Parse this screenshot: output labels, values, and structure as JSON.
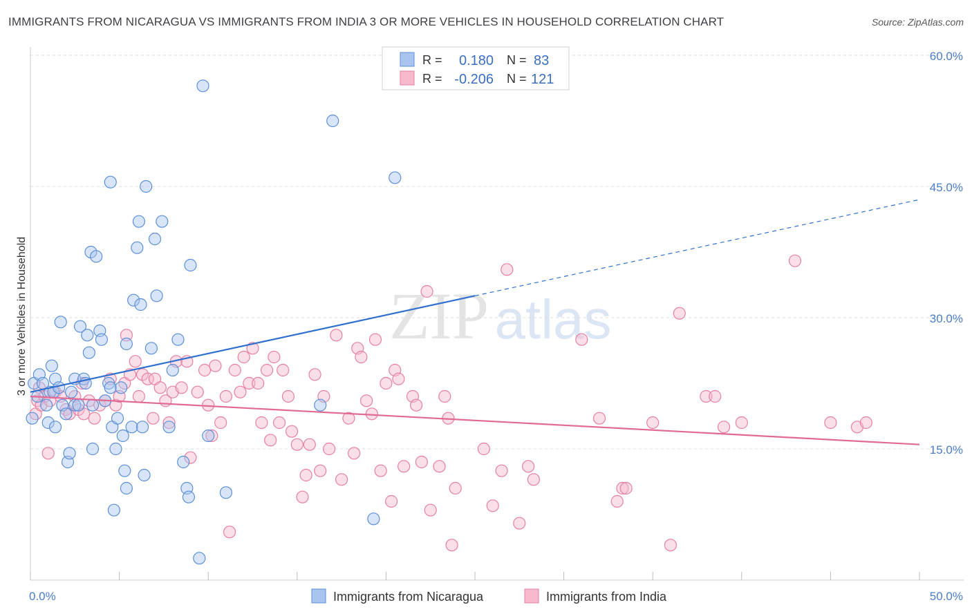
{
  "title": "IMMIGRANTS FROM NICARAGUA VS IMMIGRANTS FROM INDIA 3 OR MORE VEHICLES IN HOUSEHOLD CORRELATION CHART",
  "source": "Source: ZipAtlas.com",
  "watermark": {
    "zip": "ZIP",
    "atlas": "atlas"
  },
  "colors": {
    "nicaragua_fill": "#a9c5ef",
    "nicaragua_stroke": "#5b8fd8",
    "nicaragua_line": "#2f6fcf",
    "india_fill": "#f7b8cc",
    "india_stroke": "#e67fa0",
    "india_line": "#e06a93",
    "tick": "#4a7cc9",
    "grid": "#dddddd"
  },
  "stats": {
    "r_label": "R =",
    "n_label": "N =",
    "nicaragua": {
      "r": "0.180",
      "n": "83"
    },
    "india": {
      "r": "-0.206",
      "n": "121"
    }
  },
  "chart_data": {
    "type": "scatter",
    "title": "IMMIGRANTS FROM NICARAGUA VS IMMIGRANTS FROM INDIA 3 OR MORE VEHICLES IN HOUSEHOLD CORRELATION CHART",
    "xlabel": "",
    "ylabel": "3 or more Vehicles in Household",
    "xlim": [
      0,
      50
    ],
    "ylim": [
      0,
      60
    ],
    "x_tick_labels": [
      "0.0%",
      "50.0%"
    ],
    "y_ticks": [
      15,
      30,
      45,
      60
    ],
    "y_tick_labels": [
      "15.0%",
      "30.0%",
      "45.0%",
      "60.0%"
    ],
    "grid": true,
    "legend_position": "bottom",
    "series": [
      {
        "name": "Immigrants from Nicaragua",
        "trend": {
          "x": [
            0,
            25
          ],
          "y": [
            21.5,
            32.5
          ],
          "dashed_to": [
            50,
            43.5
          ]
        },
        "points": [
          [
            0.1,
            18.5
          ],
          [
            0.2,
            22.5
          ],
          [
            0.4,
            21
          ],
          [
            0.5,
            23.5
          ],
          [
            0.7,
            22.5
          ],
          [
            0.9,
            20
          ],
          [
            1.0,
            18
          ],
          [
            1.1,
            21.5
          ],
          [
            1.2,
            24.5
          ],
          [
            1.3,
            21.5
          ],
          [
            1.4,
            17.5
          ],
          [
            1.4,
            23
          ],
          [
            1.6,
            22
          ],
          [
            1.7,
            29.5
          ],
          [
            1.8,
            20
          ],
          [
            2.0,
            19
          ],
          [
            2.1,
            13.5
          ],
          [
            2.2,
            14.5
          ],
          [
            2.3,
            21.5
          ],
          [
            2.5,
            20
          ],
          [
            2.5,
            23
          ],
          [
            2.7,
            20
          ],
          [
            2.8,
            29
          ],
          [
            3.0,
            23
          ],
          [
            3.1,
            22.5
          ],
          [
            3.2,
            28
          ],
          [
            3.3,
            26
          ],
          [
            3.4,
            37.5
          ],
          [
            3.5,
            15
          ],
          [
            3.5,
            20
          ],
          [
            3.7,
            37
          ],
          [
            3.9,
            28.5
          ],
          [
            4.0,
            27.5
          ],
          [
            4.2,
            20.5
          ],
          [
            4.4,
            22.5
          ],
          [
            4.5,
            22
          ],
          [
            4.5,
            45.5
          ],
          [
            4.6,
            17.5
          ],
          [
            4.7,
            8
          ],
          [
            4.8,
            15
          ],
          [
            4.9,
            18.5
          ],
          [
            5.1,
            22
          ],
          [
            5.2,
            16.5
          ],
          [
            5.3,
            12.5
          ],
          [
            5.4,
            27
          ],
          [
            5.4,
            10.5
          ],
          [
            5.7,
            17.5
          ],
          [
            5.8,
            32
          ],
          [
            6.0,
            38
          ],
          [
            6.1,
            41
          ],
          [
            6.2,
            31.5
          ],
          [
            6.3,
            17.5
          ],
          [
            6.4,
            12
          ],
          [
            6.5,
            45
          ],
          [
            6.8,
            26.5
          ],
          [
            7.0,
            39
          ],
          [
            7.1,
            32.5
          ],
          [
            7.4,
            41
          ],
          [
            7.8,
            17.5
          ],
          [
            8.0,
            24
          ],
          [
            8.3,
            27.5
          ],
          [
            8.6,
            13.5
          ],
          [
            8.8,
            10.5
          ],
          [
            8.9,
            9.5
          ],
          [
            9.0,
            36
          ],
          [
            9.5,
            2.5
          ],
          [
            9.7,
            56.5
          ],
          [
            10.0,
            16.5
          ],
          [
            11.0,
            10
          ],
          [
            16.3,
            20
          ],
          [
            17.0,
            52.5
          ],
          [
            19.3,
            7
          ],
          [
            20.5,
            46
          ]
        ]
      },
      {
        "name": "Immigrants from India",
        "trend": {
          "x": [
            0,
            50
          ],
          "y": [
            21,
            15.5
          ]
        },
        "points": [
          [
            0.3,
            19
          ],
          [
            0.4,
            20.5
          ],
          [
            0.5,
            22
          ],
          [
            0.6,
            20
          ],
          [
            0.8,
            21
          ],
          [
            1.0,
            14.5
          ],
          [
            1.1,
            20.5
          ],
          [
            1.4,
            21.5
          ],
          [
            1.7,
            21
          ],
          [
            2.0,
            19.5
          ],
          [
            2.2,
            19
          ],
          [
            2.5,
            21
          ],
          [
            2.7,
            19.5
          ],
          [
            2.9,
            22.5
          ],
          [
            3.0,
            19
          ],
          [
            3.3,
            20.5
          ],
          [
            3.6,
            18.5
          ],
          [
            3.9,
            20
          ],
          [
            4.2,
            20.5
          ],
          [
            4.5,
            23
          ],
          [
            4.8,
            20
          ],
          [
            5.0,
            21
          ],
          [
            5.3,
            22.5
          ],
          [
            5.4,
            28
          ],
          [
            5.6,
            23.5
          ],
          [
            5.9,
            25
          ],
          [
            6.1,
            21
          ],
          [
            6.3,
            23.5
          ],
          [
            6.6,
            23
          ],
          [
            6.9,
            18.5
          ],
          [
            7.0,
            23
          ],
          [
            7.3,
            22
          ],
          [
            7.6,
            20.5
          ],
          [
            7.8,
            18
          ],
          [
            8.0,
            21.5
          ],
          [
            8.2,
            25
          ],
          [
            8.5,
            22
          ],
          [
            8.8,
            25
          ],
          [
            9.0,
            14
          ],
          [
            9.4,
            21.5
          ],
          [
            9.8,
            24
          ],
          [
            10.0,
            20
          ],
          [
            10.2,
            16.5
          ],
          [
            10.4,
            24.5
          ],
          [
            10.7,
            18
          ],
          [
            11.0,
            21
          ],
          [
            11.2,
            5.5
          ],
          [
            11.5,
            24
          ],
          [
            11.8,
            21.5
          ],
          [
            12.0,
            25.5
          ],
          [
            12.3,
            22.5
          ],
          [
            12.5,
            26.5
          ],
          [
            12.8,
            22.5
          ],
          [
            13.0,
            18
          ],
          [
            13.3,
            24
          ],
          [
            13.5,
            16
          ],
          [
            13.7,
            25.5
          ],
          [
            14.0,
            18
          ],
          [
            14.2,
            24
          ],
          [
            14.5,
            21
          ],
          [
            14.7,
            17
          ],
          [
            15.0,
            15.5
          ],
          [
            15.3,
            9.5
          ],
          [
            15.5,
            12
          ],
          [
            15.7,
            15.5
          ],
          [
            16.0,
            23.5
          ],
          [
            16.3,
            12.5
          ],
          [
            16.5,
            21
          ],
          [
            16.8,
            15
          ],
          [
            17.2,
            28
          ],
          [
            17.5,
            11.5
          ],
          [
            17.9,
            18.5
          ],
          [
            18.2,
            14.5
          ],
          [
            18.4,
            26.5
          ],
          [
            18.6,
            25.5
          ],
          [
            18.9,
            20.5
          ],
          [
            19.2,
            19
          ],
          [
            19.4,
            27.5
          ],
          [
            19.7,
            12.5
          ],
          [
            20.0,
            22.5
          ],
          [
            20.3,
            9
          ],
          [
            20.5,
            24
          ],
          [
            20.7,
            23
          ],
          [
            21.0,
            13
          ],
          [
            21.5,
            21
          ],
          [
            21.7,
            20
          ],
          [
            22.0,
            13.5
          ],
          [
            22.3,
            33
          ],
          [
            22.5,
            8
          ],
          [
            23.0,
            13
          ],
          [
            23.3,
            21
          ],
          [
            23.5,
            18.5
          ],
          [
            23.7,
            4
          ],
          [
            23.9,
            10.5
          ],
          [
            25.5,
            15
          ],
          [
            26.0,
            8.5
          ],
          [
            26.5,
            12.5
          ],
          [
            26.8,
            35.5
          ],
          [
            27.5,
            6.5
          ],
          [
            28.0,
            13
          ],
          [
            28.3,
            11.5
          ],
          [
            31.0,
            27.5
          ],
          [
            32.0,
            18.5
          ],
          [
            33.0,
            9
          ],
          [
            33.3,
            10.5
          ],
          [
            33.5,
            10.5
          ],
          [
            35.0,
            18
          ],
          [
            36.0,
            4
          ],
          [
            36.5,
            30.5
          ],
          [
            38.0,
            21
          ],
          [
            38.5,
            21
          ],
          [
            39.0,
            17.5
          ],
          [
            40.0,
            18
          ],
          [
            43.0,
            36.5
          ],
          [
            45.0,
            18
          ],
          [
            46.5,
            17.5
          ],
          [
            47.0,
            18
          ]
        ]
      }
    ]
  },
  "legend": {
    "nicaragua": "Immigrants from Nicaragua",
    "india": "Immigrants from India"
  }
}
